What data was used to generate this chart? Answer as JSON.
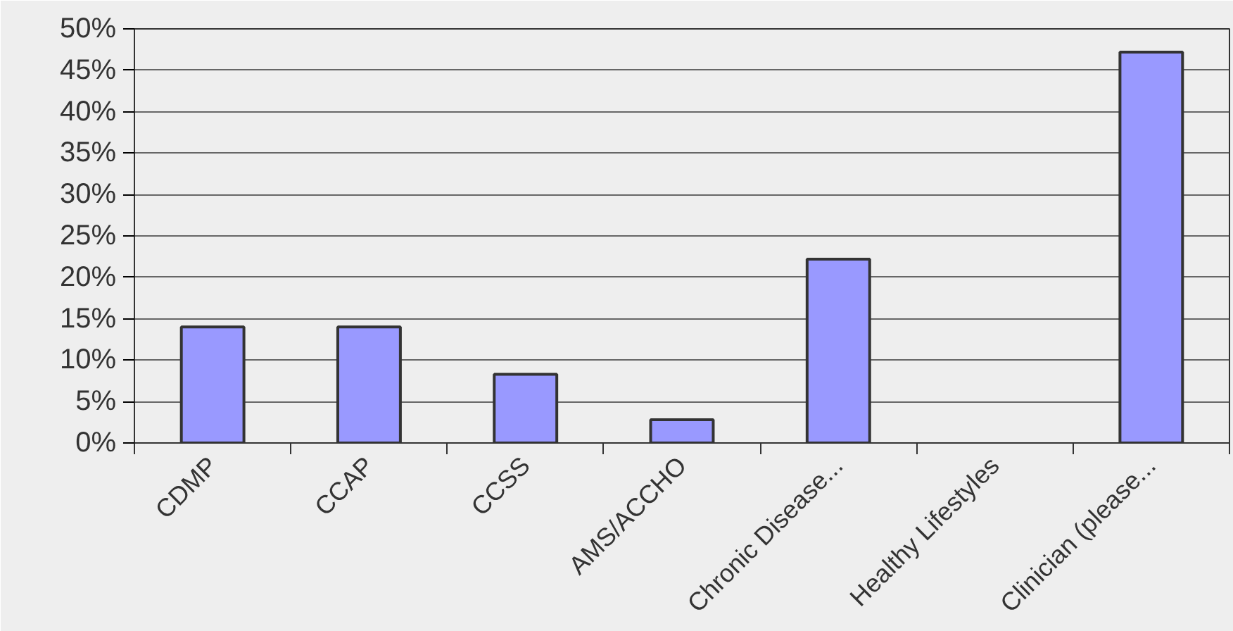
{
  "chart_data": {
    "type": "bar",
    "categories": [
      "CDMP",
      "CCAP",
      "CCSS",
      "AMS/ACCHO",
      "Chronic Disease...",
      "Healthy Lifestyles",
      "Clinician (please..."
    ],
    "values": [
      14,
      14,
      8.3,
      2.8,
      22.2,
      null,
      47.2
    ],
    "color": "#9999ff",
    "ylim": [
      0,
      50
    ],
    "yticks": [
      {
        "value": 0,
        "label": "0%"
      },
      {
        "value": 5,
        "label": "5%"
      },
      {
        "value": 10,
        "label": "10%"
      },
      {
        "value": 15,
        "label": "15%"
      },
      {
        "value": 20,
        "label": "20%"
      },
      {
        "value": 25,
        "label": "25%"
      },
      {
        "value": 30,
        "label": "30%"
      },
      {
        "value": 35,
        "label": "35%"
      },
      {
        "value": 40,
        "label": "40%"
      },
      {
        "value": 45,
        "label": "45%"
      },
      {
        "value": 50,
        "label": "50%"
      }
    ],
    "grid": "y"
  }
}
